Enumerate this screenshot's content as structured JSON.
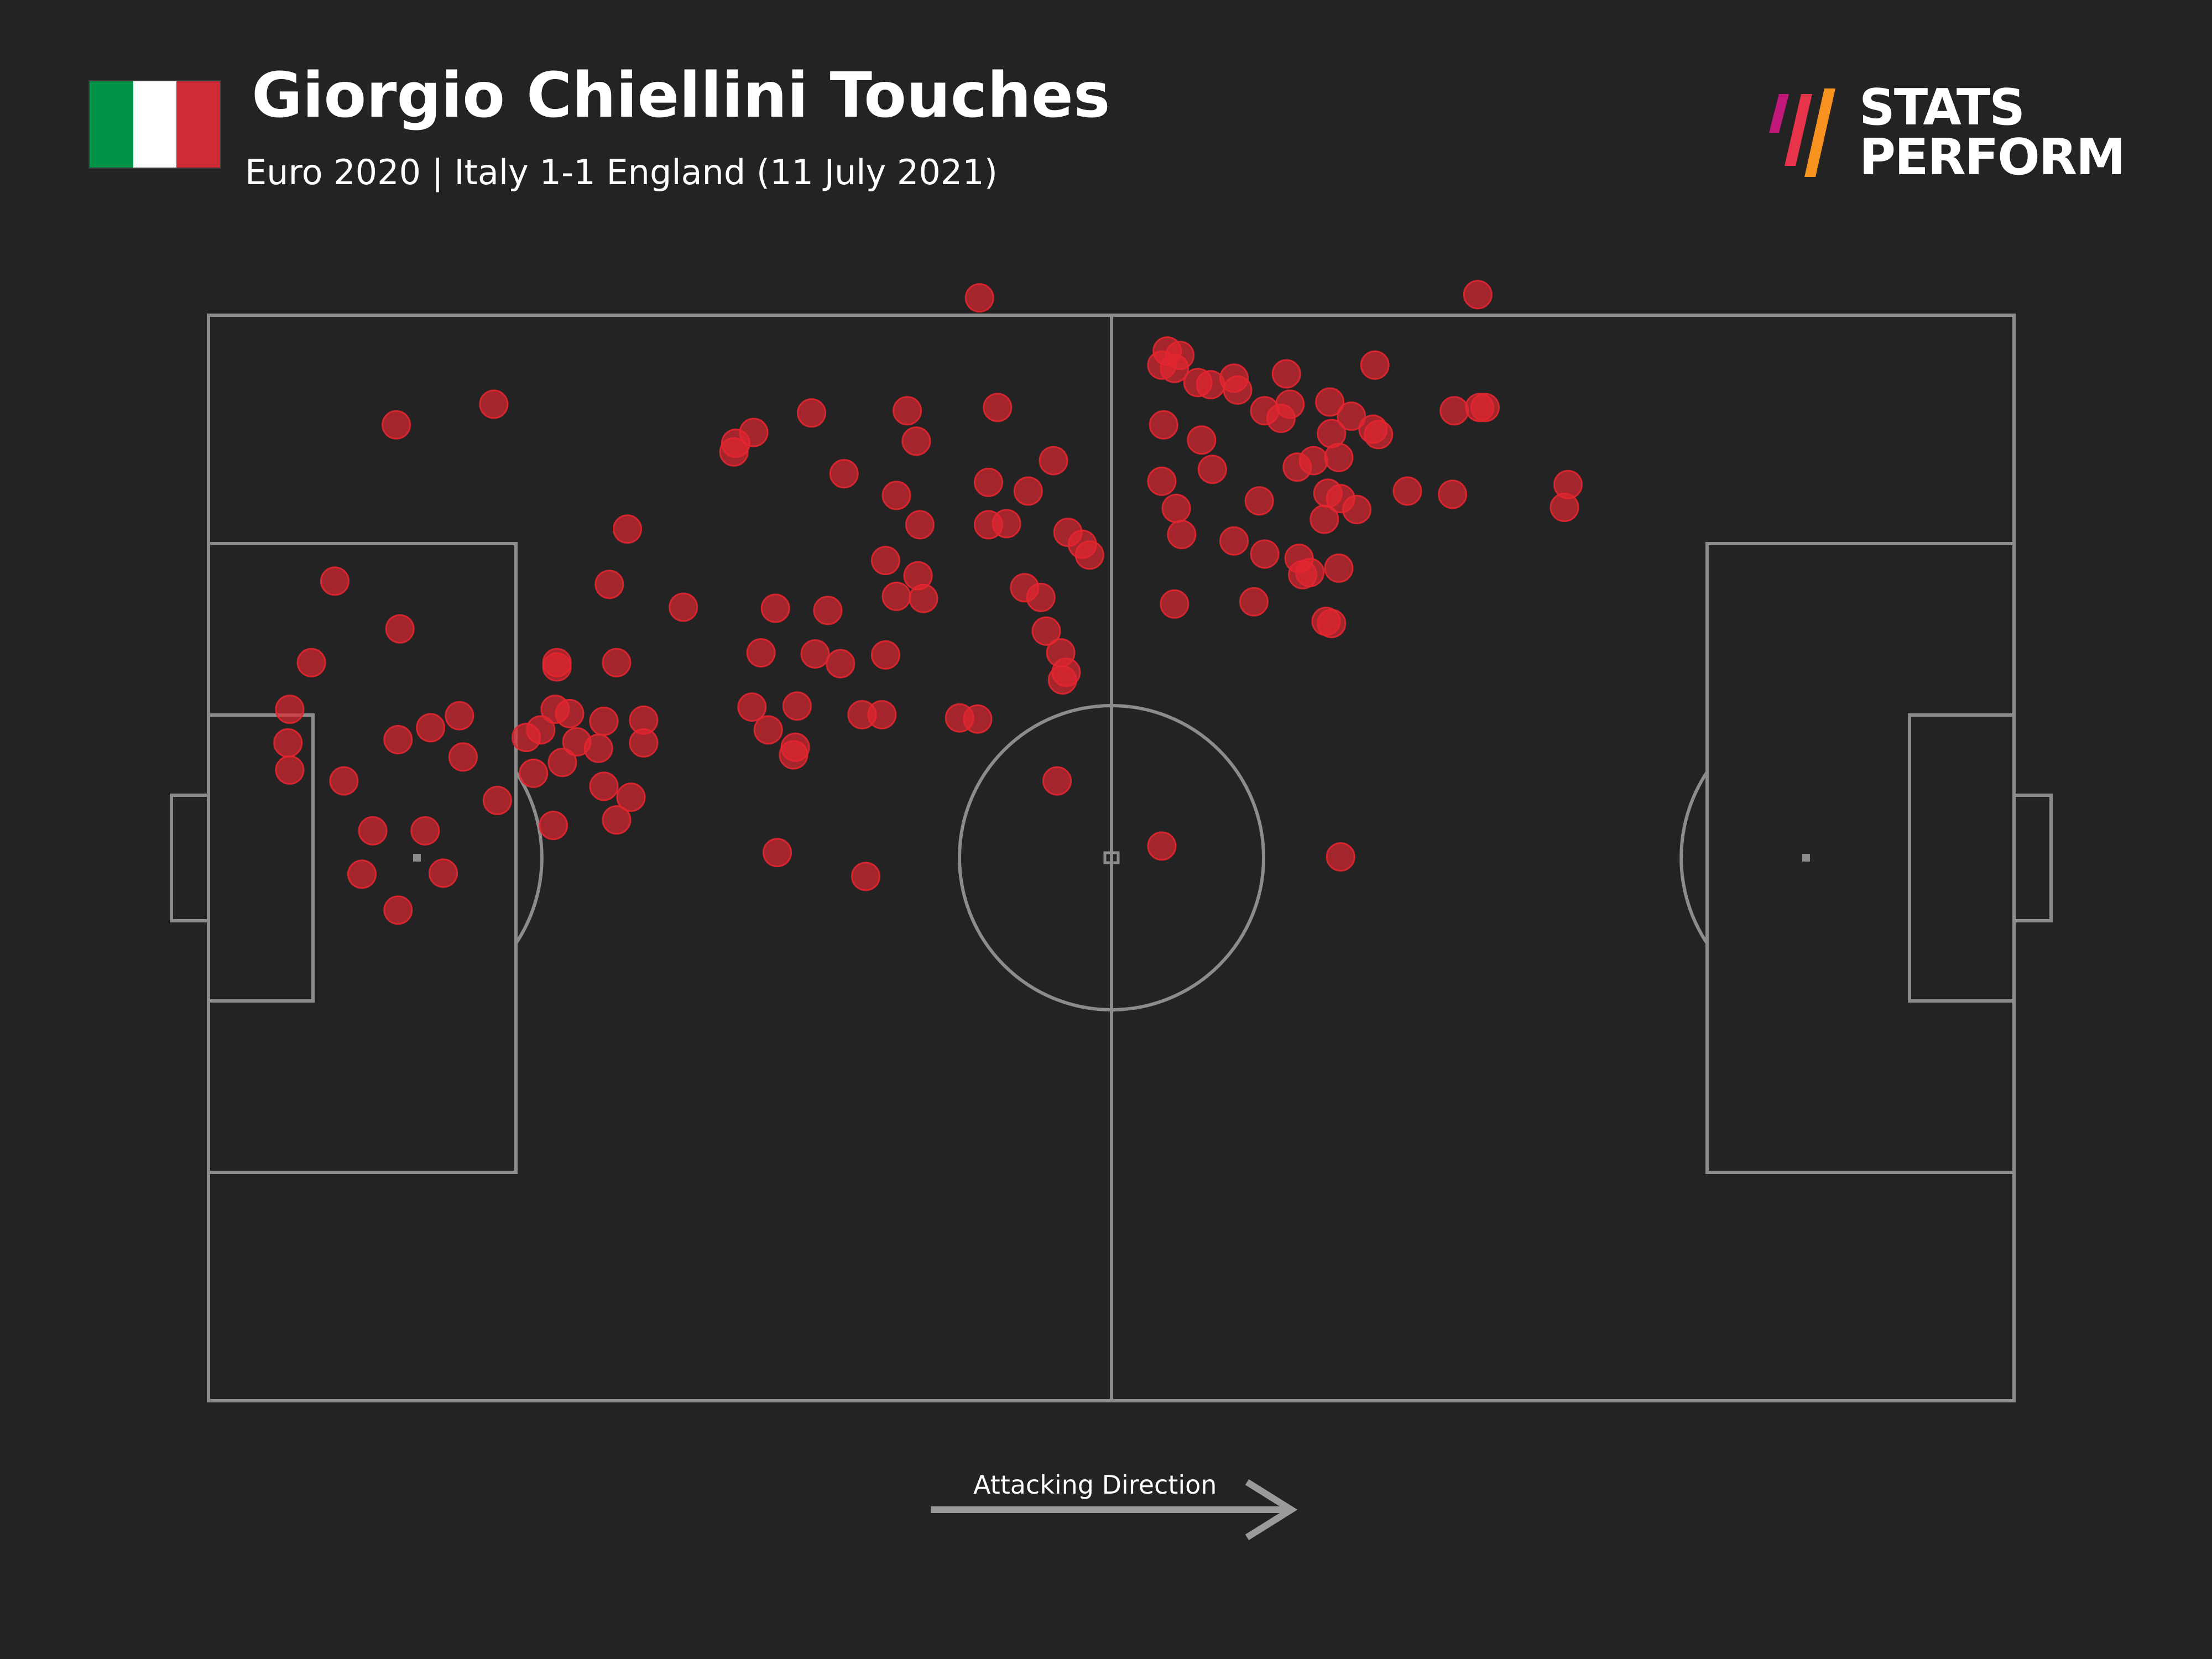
{
  "header": {
    "title": "Giorgio Chiellini Touches",
    "subtitle": "Euro 2020 | Italy 1-1 England (11 July 2021)",
    "flag_colors": [
      "#009246",
      "#ffffff",
      "#ce2b37"
    ],
    "flag_icon": "italy-flag-icon"
  },
  "logo": {
    "line1": "STATS",
    "line2": "PERFORM",
    "icon": "stats-perform-logo-icon",
    "mark_colors": [
      "#c2187c",
      "#e8344a",
      "#f7931e"
    ]
  },
  "footer": {
    "attacking_direction_label": "Attacking Direction",
    "arrow_icon": "arrow-right-icon"
  },
  "colors": {
    "background": "#232323",
    "pitch_lines": "#8c8c8c",
    "touch": "#e32630"
  },
  "chart_data": {
    "type": "scatter",
    "title": "Giorgio Chiellini Touches",
    "subtitle": "Euro 2020 | Italy 1-1 England (11 July 2021)",
    "xlabel": "",
    "ylabel": "",
    "xlim": [
      0,
      100
    ],
    "ylim": [
      0,
      100
    ],
    "grid": false,
    "legend": "none",
    "series": [
      {
        "points": [
          [
            42.7,
            101.6
          ],
          [
            70.3,
            101.9
          ],
          [
            10.4,
            89.9
          ],
          [
            15.8,
            91.8
          ],
          [
            33.4,
            91.0
          ],
          [
            38.7,
            91.2
          ],
          [
            43.7,
            91.5
          ],
          [
            29.2,
            88.2
          ],
          [
            30.2,
            89.2
          ],
          [
            29.1,
            87.4
          ],
          [
            39.2,
            88.4
          ],
          [
            35.2,
            85.4
          ],
          [
            38.1,
            83.4
          ],
          [
            39.4,
            80.7
          ],
          [
            43.2,
            84.6
          ],
          [
            45.4,
            83.8
          ],
          [
            46.8,
            86.6
          ],
          [
            43.2,
            80.7
          ],
          [
            44.2,
            80.8
          ],
          [
            47.6,
            80.0
          ],
          [
            48.4,
            78.9
          ],
          [
            48.8,
            77.9
          ],
          [
            23.2,
            80.3
          ],
          [
            37.5,
            77.4
          ],
          [
            39.3,
            76.0
          ],
          [
            22.2,
            75.2
          ],
          [
            26.3,
            73.1
          ],
          [
            31.4,
            73.0
          ],
          [
            34.3,
            72.8
          ],
          [
            38.1,
            74.1
          ],
          [
            39.6,
            73.9
          ],
          [
            45.2,
            74.9
          ],
          [
            46.1,
            74.0
          ],
          [
            7.0,
            75.5
          ],
          [
            10.6,
            71.1
          ],
          [
            5.7,
            68.0
          ],
          [
            22.6,
            68.0
          ],
          [
            30.6,
            68.9
          ],
          [
            33.6,
            68.8
          ],
          [
            35.0,
            67.9
          ],
          [
            37.5,
            68.7
          ],
          [
            46.4,
            70.9
          ],
          [
            47.2,
            68.9
          ],
          [
            47.5,
            67.1
          ],
          [
            19.3,
            67.6
          ],
          [
            20.0,
            63.3
          ],
          [
            21.9,
            62.6
          ],
          [
            24.1,
            62.7
          ],
          [
            30.1,
            63.9
          ],
          [
            32.6,
            64.0
          ],
          [
            36.2,
            63.2
          ],
          [
            37.3,
            63.2
          ],
          [
            41.6,
            62.9
          ],
          [
            42.6,
            62.8
          ],
          [
            47.3,
            66.4
          ],
          [
            4.5,
            63.7
          ],
          [
            12.3,
            62.0
          ],
          [
            13.9,
            63.1
          ],
          [
            19.3,
            68.0
          ],
          [
            19.2,
            63.7
          ],
          [
            18.4,
            61.8
          ],
          [
            17.6,
            61.1
          ],
          [
            20.4,
            60.7
          ],
          [
            21.6,
            60.1
          ],
          [
            24.1,
            60.6
          ],
          [
            31.0,
            61.8
          ],
          [
            4.4,
            60.6
          ],
          [
            10.5,
            60.9
          ],
          [
            14.1,
            59.3
          ],
          [
            4.5,
            58.1
          ],
          [
            7.5,
            57.1
          ],
          [
            18.0,
            57.8
          ],
          [
            19.6,
            58.8
          ],
          [
            21.9,
            56.6
          ],
          [
            32.5,
            60.2
          ],
          [
            32.4,
            59.5
          ],
          [
            16.0,
            55.3
          ],
          [
            23.4,
            55.6
          ],
          [
            22.6,
            53.5
          ],
          [
            47.0,
            57.1
          ],
          [
            19.1,
            53.0
          ],
          [
            31.5,
            50.5
          ],
          [
            36.4,
            48.3
          ],
          [
            52.8,
            51.1
          ],
          [
            62.7,
            50.1
          ],
          [
            9.1,
            52.5
          ],
          [
            12.0,
            52.5
          ],
          [
            13.0,
            48.6
          ],
          [
            8.5,
            48.5
          ],
          [
            10.5,
            45.2
          ],
          [
            53.1,
            96.7
          ],
          [
            53.8,
            96.3
          ],
          [
            52.8,
            95.4
          ],
          [
            53.5,
            95.1
          ],
          [
            52.9,
            89.9
          ],
          [
            54.8,
            93.8
          ],
          [
            55.5,
            93.6
          ],
          [
            56.8,
            94.2
          ],
          [
            57.0,
            93.1
          ],
          [
            59.7,
            94.6
          ],
          [
            62.1,
            92.0
          ],
          [
            63.3,
            90.7
          ],
          [
            64.6,
            95.4
          ],
          [
            55.0,
            88.5
          ],
          [
            53.6,
            82.2
          ],
          [
            55.6,
            85.8
          ],
          [
            60.3,
            86.0
          ],
          [
            58.5,
            91.2
          ],
          [
            59.9,
            91.8
          ],
          [
            59.4,
            90.5
          ],
          [
            62.2,
            89.1
          ],
          [
            62.0,
            83.6
          ],
          [
            64.5,
            89.5
          ],
          [
            64.8,
            89.0
          ],
          [
            61.2,
            86.6
          ],
          [
            62.6,
            86.9
          ],
          [
            52.8,
            84.7
          ],
          [
            58.2,
            82.9
          ],
          [
            61.8,
            81.2
          ],
          [
            62.7,
            83.1
          ],
          [
            63.6,
            82.1
          ],
          [
            53.9,
            79.8
          ],
          [
            56.8,
            79.2
          ],
          [
            58.5,
            78.0
          ],
          [
            60.4,
            77.6
          ],
          [
            61.0,
            76.3
          ],
          [
            60.6,
            76.1
          ],
          [
            62.6,
            76.7
          ],
          [
            53.5,
            73.4
          ],
          [
            57.9,
            73.6
          ],
          [
            61.9,
            71.8
          ],
          [
            62.2,
            71.6
          ],
          [
            66.4,
            83.8
          ],
          [
            75.3,
            84.4
          ],
          [
            75.1,
            82.3
          ],
          [
            68.9,
            83.5
          ],
          [
            69.0,
            91.2
          ],
          [
            70.4,
            91.5
          ],
          [
            70.7,
            91.5
          ]
        ]
      }
    ]
  }
}
